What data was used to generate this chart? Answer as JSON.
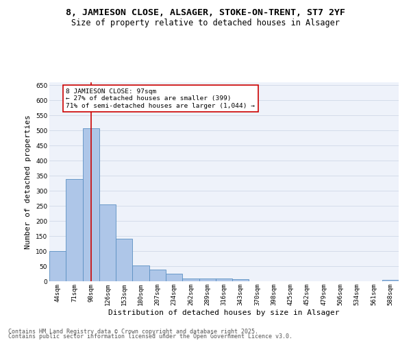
{
  "title_line1": "8, JAMIESON CLOSE, ALSAGER, STOKE-ON-TRENT, ST7 2YF",
  "title_line2": "Size of property relative to detached houses in Alsager",
  "xlabel": "Distribution of detached houses by size in Alsager",
  "ylabel": "Number of detached properties",
  "categories": [
    "44sqm",
    "71sqm",
    "98sqm",
    "126sqm",
    "153sqm",
    "180sqm",
    "207sqm",
    "234sqm",
    "262sqm",
    "289sqm",
    "316sqm",
    "343sqm",
    "370sqm",
    "398sqm",
    "425sqm",
    "452sqm",
    "479sqm",
    "506sqm",
    "534sqm",
    "561sqm",
    "588sqm"
  ],
  "values": [
    100,
    338,
    507,
    255,
    140,
    53,
    38,
    24,
    9,
    10,
    10,
    6,
    0,
    0,
    0,
    0,
    0,
    0,
    0,
    0,
    5
  ],
  "bar_color": "#aec6e8",
  "bar_edge_color": "#5a8fc2",
  "vline_x": 2,
  "vline_color": "#cc0000",
  "annotation_line1": "8 JAMIESON CLOSE: 97sqm",
  "annotation_line2": "← 27% of detached houses are smaller (399)",
  "annotation_line3": "71% of semi-detached houses are larger (1,044) →",
  "annotation_box_color": "#ffffff",
  "annotation_box_edge": "#cc0000",
  "ylim": [
    0,
    660
  ],
  "yticks": [
    0,
    50,
    100,
    150,
    200,
    250,
    300,
    350,
    400,
    450,
    500,
    550,
    600,
    650
  ],
  "grid_color": "#d0d8e8",
  "bg_color": "#eef2fa",
  "footer_line1": "Contains HM Land Registry data © Crown copyright and database right 2025.",
  "footer_line2": "Contains public sector information licensed under the Open Government Licence v3.0.",
  "title_fontsize": 9.5,
  "subtitle_fontsize": 8.5,
  "axis_label_fontsize": 8,
  "tick_fontsize": 6.5,
  "annotation_fontsize": 6.8,
  "footer_fontsize": 6.0
}
